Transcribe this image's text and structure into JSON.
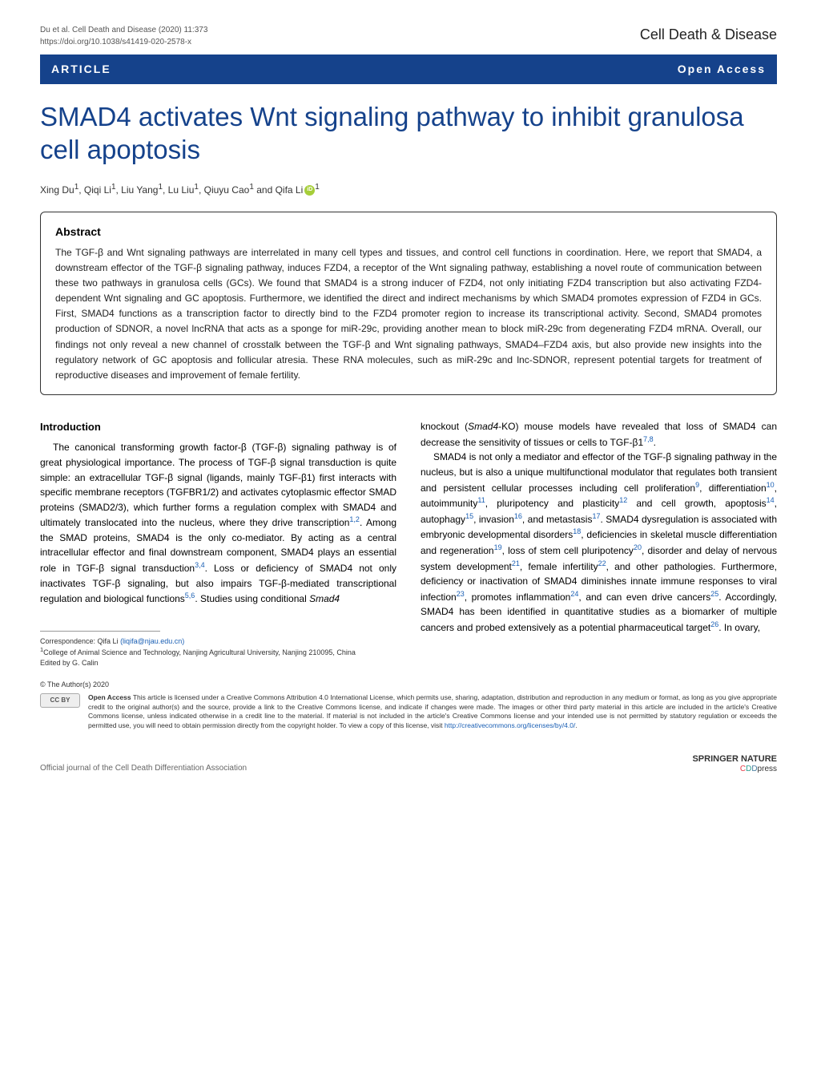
{
  "header": {
    "citation_line1": "Du et al. Cell Death and Disease          (2020) 11:373",
    "citation_line2": "https://doi.org/10.1038/s41419-020-2578-x",
    "journal_name": "Cell Death & Disease"
  },
  "article_bar": {
    "label": "ARTICLE",
    "open_access": "Open Access"
  },
  "title": "SMAD4 activates Wnt signaling pathway to inhibit granulosa cell apoptosis",
  "authors": {
    "text_prefix": "Xing Du",
    "sup1": "1",
    "a2": ", Qiqi Li",
    "a3": ", Liu Yang",
    "a4": ", Lu Liu",
    "a5": ", Qiuyu Cao",
    "a6": " and Qifa Li"
  },
  "abstract": {
    "heading": "Abstract",
    "text": "The TGF-β and Wnt signaling pathways are interrelated in many cell types and tissues, and control cell functions in coordination. Here, we report that SMAD4, a downstream effector of the TGF-β signaling pathway, induces FZD4, a receptor of the Wnt signaling pathway, establishing a novel route of communication between these two pathways in granulosa cells (GCs). We found that SMAD4 is a strong inducer of FZD4, not only initiating FZD4 transcription but also activating FZD4-dependent Wnt signaling and GC apoptosis. Furthermore, we identified the direct and indirect mechanisms by which SMAD4 promotes expression of FZD4 in GCs. First, SMAD4 functions as a transcription factor to directly bind to the FZD4 promoter region to increase its transcriptional activity. Second, SMAD4 promotes production of SDNOR, a novel lncRNA that acts as a sponge for miR-29c, providing another mean to block miR-29c from degenerating FZD4 mRNA. Overall, our findings not only reveal a new channel of crosstalk between the TGF-β and Wnt signaling pathways, SMAD4–FZD4 axis, but also provide new insights into the regulatory network of GC apoptosis and follicular atresia. These RNA molecules, such as miR-29c and lnc-SDNOR, represent potential targets for treatment of reproductive diseases and improvement of female fertility."
  },
  "intro": {
    "heading": "Introduction",
    "p1_a": "The canonical transforming growth factor-β (TGF-β) signaling pathway is of great physiological importance. The process of TGF-β signal transduction is quite simple: an extracellular TGF-β signal (ligands, mainly TGF-β1) first interacts with specific membrane receptors (TGFBR1/2) and activates cytoplasmic effector SMAD proteins (SMAD2/3), which further forms a regulation complex with SMAD4 and ultimately translocated into the nucleus, where they drive transcription",
    "p1_b": ". Among the SMAD proteins, SMAD4 is the only co-mediator. By acting as a central intracellular effector and final downstream component, SMAD4 plays an essential role in TGF-β signal transduction",
    "p1_c": ". Loss or deficiency of SMAD4 not only inactivates TGF-β signaling, but also impairs TGF-β-mediated transcriptional regulation and biological functions",
    "p1_d": ". Studies using conditional ",
    "p1_smad4": "Smad4",
    "ref_1_2": "1,2",
    "ref_3_4": "3,4",
    "ref_5_6": "5,6"
  },
  "col2": {
    "p1_a": "knockout (",
    "p1_smad4ko": "Smad4",
    "p1_b": "-KO) mouse models have revealed that loss of SMAD4 can decrease the sensitivity of tissues or cells to TGF-β1",
    "ref_7_8": "7,8",
    "p1_c": ".",
    "p2_a": "SMAD4 is not only a mediator and effector of the TGF-β signaling pathway in the nucleus, but is also a unique multifunctional modulator that regulates both transient and persistent cellular processes including cell proliferation",
    "ref_9": "9",
    "p2_b": ", differentiation",
    "ref_10": "10",
    "p2_c": ", autoimmunity",
    "ref_11": "11",
    "p2_d": ", pluripotency and plasticity",
    "ref_12": "12",
    "p2_e": " and cell growth",
    "ref_13": "13",
    "p2_f": ", apoptosis",
    "ref_14": "14",
    "p2_g": ", autophagy",
    "ref_15": "15",
    "p2_h": ", invasion",
    "ref_16": "16",
    "p2_i": ", and metastasis",
    "ref_17": "17",
    "p2_j": ". SMAD4 dysregulation is associated with embryonic developmental disorders",
    "ref_18": "18",
    "p2_k": ", deficiencies in skeletal muscle differentiation and regeneration",
    "ref_19": "19",
    "p2_l": ", loss of stem cell pluripotency",
    "ref_20": "20",
    "p2_m": ", disorder and delay of nervous system development",
    "ref_21": "21",
    "p2_n": ", female infertility",
    "ref_22": "22",
    "p2_o": ", and other pathologies. Furthermore, deficiency or inactivation of SMAD4 diminishes innate immune responses to viral infection",
    "ref_23": "23",
    "p2_p": ", promotes inflammation",
    "ref_24": "24",
    "p2_q": ", and can even drive cancers",
    "ref_25": "25",
    "p2_r": ". Accordingly, SMAD4 has been identified in quantitative studies as a biomarker of multiple cancers and probed extensively as a potential pharmaceutical target",
    "ref_26": "26",
    "p2_s": ". In ovary,"
  },
  "footer": {
    "correspondence_label": "Correspondence: Qifa Li ",
    "email": "(liqifa@njau.edu.cn)",
    "affiliation": "College of Animal Science and Technology, Nanjing Agricultural University, Nanjing 210095, China",
    "edited_by": "Edited by G. Calin",
    "copyright": "© The Author(s) 2020",
    "cc_badge": "CC  BY",
    "license_bold": "Open Access",
    "license_text": " This article is licensed under a Creative Commons Attribution 4.0 International License, which permits use, sharing, adaptation, distribution and reproduction in any medium or format, as long as you give appropriate credit to the original author(s) and the source, provide a link to the Creative Commons license, and indicate if changes were made. The images or other third party material in this article are included in the article's Creative Commons license, unless indicated otherwise in a credit line to the material. If material is not included in the article's Creative Commons license and your intended use is not permitted by statutory regulation or exceeds the permitted use, you will need to obtain permission directly from the copyright holder. To view a copy of this license, visit ",
    "license_link": "http://creativecommons.org/licenses/by/4.0/",
    "license_end": "."
  },
  "bottom": {
    "official": "Official journal of the Cell Death Differentiation Association",
    "springer": "SPRINGER NATURE",
    "cdd_c": "C",
    "cdd_d1": "D",
    "cdd_d2": "D",
    "cdd_press": "press"
  },
  "colors": {
    "bar_bg": "#15428b",
    "title_color": "#15428b",
    "link_color": "#1a5fb4",
    "orcid_green": "#a6ce39"
  }
}
